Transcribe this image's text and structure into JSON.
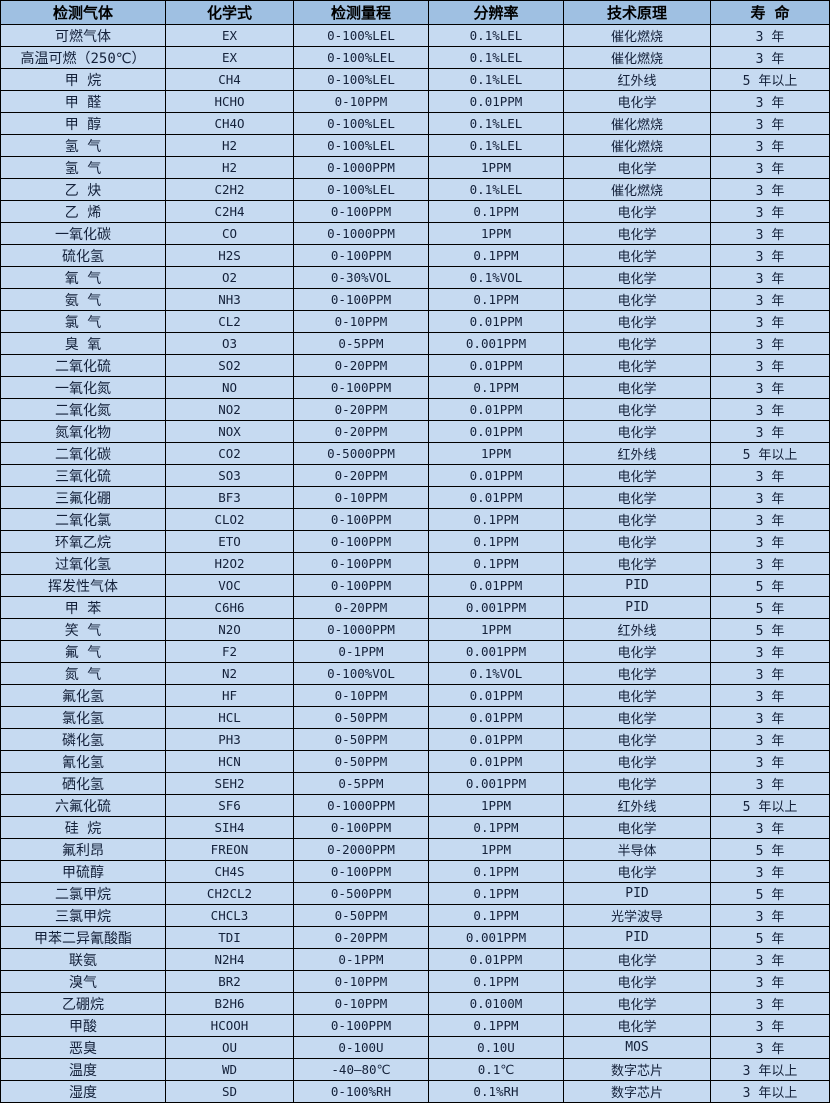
{
  "table": {
    "columns": [
      "检测气体",
      "化学式",
      "检测量程",
      "分辨率",
      "技术原理",
      "寿 命"
    ],
    "rows": [
      [
        "可燃气体",
        "EX",
        "0-100%LEL",
        "0.1%LEL",
        "催化燃烧",
        "3 年"
      ],
      [
        "高温可燃（250℃）",
        "EX",
        "0-100%LEL",
        "0.1%LEL",
        "催化燃烧",
        "3 年"
      ],
      [
        "甲 烷",
        "CH4",
        "0-100%LEL",
        "0.1%LEL",
        "红外线",
        "5 年以上"
      ],
      [
        "甲 醛",
        "HCHO",
        "0-10PPM",
        "0.01PPM",
        "电化学",
        "3 年"
      ],
      [
        "甲 醇",
        "CH4O",
        "0-100%LEL",
        "0.1%LEL",
        "催化燃烧",
        "3 年"
      ],
      [
        "氢 气",
        "H2",
        "0-100%LEL",
        "0.1%LEL",
        "催化燃烧",
        "3 年"
      ],
      [
        "氢 气",
        "H2",
        "0-1000PPM",
        "1PPM",
        "电化学",
        "3 年"
      ],
      [
        "乙 炔",
        "C2H2",
        "0-100%LEL",
        "0.1%LEL",
        "催化燃烧",
        "3 年"
      ],
      [
        "乙 烯",
        "C2H4",
        "0-100PPM",
        "0.1PPM",
        "电化学",
        "3 年"
      ],
      [
        "一氧化碳",
        "CO",
        "0-1000PPM",
        "1PPM",
        "电化学",
        "3 年"
      ],
      [
        "硫化氢",
        "H2S",
        "0-100PPM",
        "0.1PPM",
        "电化学",
        "3 年"
      ],
      [
        "氧 气",
        "O2",
        "0-30%VOL",
        "0.1%VOL",
        "电化学",
        "3 年"
      ],
      [
        "氨 气",
        "NH3",
        "0-100PPM",
        "0.1PPM",
        "电化学",
        "3 年"
      ],
      [
        "氯 气",
        "CL2",
        "0-10PPM",
        "0.01PPM",
        "电化学",
        "3 年"
      ],
      [
        "臭 氧",
        "O3",
        "0-5PPM",
        "0.001PPM",
        "电化学",
        "3 年"
      ],
      [
        "二氧化硫",
        "SO2",
        "0-20PPM",
        "0.01PPM",
        "电化学",
        "3 年"
      ],
      [
        "一氧化氮",
        "NO",
        "0-100PPM",
        "0.1PPM",
        "电化学",
        "3 年"
      ],
      [
        "二氧化氮",
        "NO2",
        "0-20PPM",
        "0.01PPM",
        "电化学",
        "3 年"
      ],
      [
        "氮氧化物",
        "NOX",
        "0-20PPM",
        "0.01PPM",
        "电化学",
        "3 年"
      ],
      [
        "二氧化碳",
        "CO2",
        "0-5000PPM",
        "1PPM",
        "红外线",
        "5 年以上"
      ],
      [
        "三氧化硫",
        "SO3",
        "0-20PPM",
        "0.01PPM",
        "电化学",
        "3 年"
      ],
      [
        "三氟化硼",
        "BF3",
        "0-10PPM",
        "0.01PPM",
        "电化学",
        "3 年"
      ],
      [
        "二氧化氯",
        "CLO2",
        "0-100PPM",
        "0.1PPM",
        "电化学",
        "3 年"
      ],
      [
        "环氧乙烷",
        "ETO",
        "0-100PPM",
        "0.1PPM",
        "电化学",
        "3 年"
      ],
      [
        "过氧化氢",
        "H2O2",
        "0-100PPM",
        "0.1PPM",
        "电化学",
        "3 年"
      ],
      [
        "挥发性气体",
        "VOC",
        "0-100PPM",
        "0.01PPM",
        "PID",
        "5 年"
      ],
      [
        "甲 苯",
        "C6H6",
        "0-20PPM",
        "0.001PPM",
        "PID",
        "5 年"
      ],
      [
        "笑 气",
        "N2O",
        "0-1000PPM",
        "1PPM",
        "红外线",
        "5 年"
      ],
      [
        "氟 气",
        "F2",
        "0-1PPM",
        "0.001PPM",
        "电化学",
        "3 年"
      ],
      [
        "氮 气",
        "N2",
        "0-100%VOL",
        "0.1%VOL",
        "电化学",
        "3 年"
      ],
      [
        "氟化氢",
        "HF",
        "0-10PPM",
        "0.01PPM",
        "电化学",
        "3 年"
      ],
      [
        "氯化氢",
        "HCL",
        "0-50PPM",
        "0.01PPM",
        "电化学",
        "3 年"
      ],
      [
        "磷化氢",
        "PH3",
        "0-50PPM",
        "0.01PPM",
        "电化学",
        "3 年"
      ],
      [
        "氰化氢",
        "HCN",
        "0-50PPM",
        "0.01PPM",
        "电化学",
        "3 年"
      ],
      [
        "硒化氢",
        "SEH2",
        "0-5PPM",
        "0.001PPM",
        "电化学",
        "3 年"
      ],
      [
        "六氟化硫",
        "SF6",
        "0-1000PPM",
        "1PPM",
        "红外线",
        "5 年以上"
      ],
      [
        "硅 烷",
        "SIH4",
        "0-100PPM",
        "0.1PPM",
        "电化学",
        "3 年"
      ],
      [
        "氟利昂",
        "FREON",
        "0-2000PPM",
        "1PPM",
        "半导体",
        "5 年"
      ],
      [
        "甲硫醇",
        "CH4S",
        "0-100PPM",
        "0.1PPM",
        "电化学",
        "3 年"
      ],
      [
        "二氯甲烷",
        "CH2CL2",
        "0-500PPM",
        "0.1PPM",
        "PID",
        "5 年"
      ],
      [
        "三氯甲烷",
        "CHCL3",
        "0-50PPM",
        "0.1PPM",
        "光学波导",
        "3 年"
      ],
      [
        "甲苯二异氰酸酯",
        "TDI",
        "0-20PPM",
        "0.001PPM",
        "PID",
        "5 年"
      ],
      [
        "联氨",
        "N2H4",
        "0-1PPM",
        "0.01PPM",
        "电化学",
        "3 年"
      ],
      [
        "溴气",
        "BR2",
        "0-10PPM",
        "0.1PPM",
        "电化学",
        "3 年"
      ],
      [
        "乙硼烷",
        "B2H6",
        "0-10PPM",
        "0.0100M",
        "电化学",
        "3 年"
      ],
      [
        "甲酸",
        "HCOOH",
        "0-100PPM",
        "0.1PPM",
        "电化学",
        "3 年"
      ],
      [
        "恶臭",
        "OU",
        "0-100U",
        "0.10U",
        "MOS",
        "3 年"
      ],
      [
        "温度",
        "WD",
        "-40—80℃",
        "0.1℃",
        "数字芯片",
        "3 年以上"
      ],
      [
        "湿度",
        "SD",
        "0-100%RH",
        "0.1%RH",
        "数字芯片",
        "3 年以上"
      ]
    ]
  },
  "colors": {
    "header_bg": "#9fc0e2",
    "row_bg": "#c6daf1",
    "grid_line": "#000000",
    "text": "#14213a"
  }
}
